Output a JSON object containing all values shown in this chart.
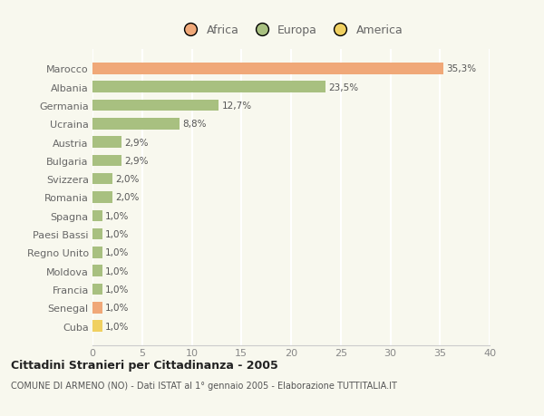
{
  "title": "Cittadini Stranieri per Cittadinanza - 2005",
  "subtitle": "COMUNE DI ARMENO (NO) - Dati ISTAT al 1° gennaio 2005 - Elaborazione TUTTITALIA.IT",
  "categories": [
    "Marocco",
    "Albania",
    "Germania",
    "Ucraina",
    "Austria",
    "Bulgaria",
    "Svizzera",
    "Romania",
    "Spagna",
    "Paesi Bassi",
    "Regno Unito",
    "Moldova",
    "Francia",
    "Senegal",
    "Cuba"
  ],
  "values": [
    35.3,
    23.5,
    12.7,
    8.8,
    2.9,
    2.9,
    2.0,
    2.0,
    1.0,
    1.0,
    1.0,
    1.0,
    1.0,
    1.0,
    1.0
  ],
  "labels": [
    "35,3%",
    "23,5%",
    "12,7%",
    "8,8%",
    "2,9%",
    "2,9%",
    "2,0%",
    "2,0%",
    "1,0%",
    "1,0%",
    "1,0%",
    "1,0%",
    "1,0%",
    "1,0%",
    "1,0%"
  ],
  "colors": [
    "#f0a878",
    "#a8c080",
    "#a8c080",
    "#a8c080",
    "#a8c080",
    "#a8c080",
    "#a8c080",
    "#a8c080",
    "#a8c080",
    "#a8c080",
    "#a8c080",
    "#a8c080",
    "#a8c080",
    "#f0a878",
    "#f0d060"
  ],
  "legend_labels": [
    "Africa",
    "Europa",
    "America"
  ],
  "legend_colors": [
    "#f0a878",
    "#a8c080",
    "#f0d060"
  ],
  "xlim": [
    0,
    40
  ],
  "xticks": [
    0,
    5,
    10,
    15,
    20,
    25,
    30,
    35,
    40
  ],
  "background_color": "#f8f8ee",
  "grid_color": "#ffffff",
  "bar_height": 0.62,
  "label_fontsize": 7.5,
  "ytick_fontsize": 8.0,
  "xtick_fontsize": 8.0
}
